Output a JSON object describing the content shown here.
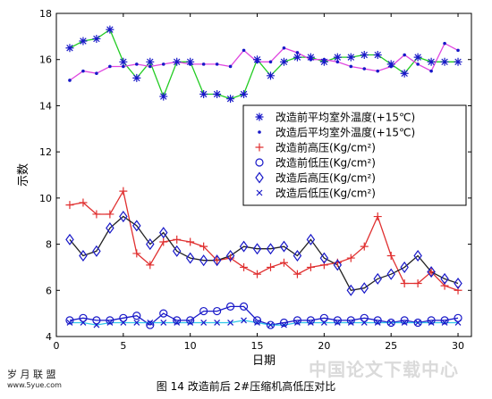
{
  "caption": "图 14  改造前后 2#压缩机高低压对比",
  "watermark": {
    "logo_main": "岁 月 联 盟",
    "logo_sub": "www.5yue.com",
    "right": "中国论文下载中心"
  },
  "chart_data": {
    "type": "line",
    "xlabel": "日期",
    "ylabel": "示数",
    "xlim": [
      0,
      31
    ],
    "ylim": [
      4,
      18
    ],
    "xticks": [
      0,
      5,
      10,
      15,
      20,
      25,
      30
    ],
    "yticks": [
      4,
      6,
      8,
      10,
      12,
      14,
      16,
      18
    ],
    "grid": false,
    "legend_position": "center-right",
    "series": [
      {
        "name": "改造前平均室外温度(+15℃)",
        "color": "#1818c8",
        "line_color": "#22cc22",
        "marker": "star",
        "x": [
          1,
          2,
          3,
          4,
          5,
          6,
          7,
          8,
          9,
          10,
          11,
          12,
          13,
          14,
          15,
          16,
          17,
          18,
          19,
          20,
          21,
          22,
          23,
          24,
          25,
          26,
          27,
          28,
          29,
          30
        ],
        "values": [
          16.5,
          16.8,
          16.9,
          17.3,
          15.9,
          15.2,
          15.9,
          14.4,
          15.9,
          15.9,
          14.5,
          14.5,
          14.3,
          14.5,
          16.0,
          15.3,
          15.9,
          16.1,
          16.1,
          15.9,
          16.1,
          16.1,
          16.2,
          16.2,
          15.8,
          15.4,
          16.1,
          15.9,
          15.9,
          15.9
        ]
      },
      {
        "name": "改造后平均室外温度(+15℃)",
        "color": "#1818c8",
        "line_color": "#e048e0",
        "marker": "dot",
        "x": [
          1,
          2,
          3,
          4,
          5,
          6,
          7,
          8,
          9,
          10,
          11,
          12,
          13,
          14,
          15,
          16,
          17,
          18,
          19,
          20,
          21,
          22,
          23,
          24,
          25,
          26,
          27,
          28,
          29,
          30
        ],
        "values": [
          15.1,
          15.5,
          15.4,
          15.7,
          15.7,
          15.8,
          15.7,
          15.8,
          15.9,
          15.8,
          15.8,
          15.8,
          15.7,
          16.4,
          15.9,
          15.9,
          16.5,
          16.3,
          16.0,
          16.0,
          15.9,
          15.7,
          15.6,
          15.5,
          15.7,
          16.2,
          15.8,
          15.5,
          16.7,
          16.4
        ]
      },
      {
        "name": "改造前高压(Kg/cm²)",
        "color": "#e03030",
        "line_color": "#e03030",
        "marker": "plus",
        "x": [
          1,
          2,
          3,
          4,
          5,
          6,
          7,
          8,
          9,
          10,
          11,
          12,
          13,
          14,
          15,
          16,
          17,
          18,
          19,
          20,
          21,
          22,
          23,
          24,
          25,
          26,
          27,
          28,
          29,
          30
        ],
        "values": [
          9.7,
          9.8,
          9.3,
          9.3,
          10.3,
          7.6,
          7.1,
          8.1,
          8.2,
          8.1,
          7.9,
          7.3,
          7.4,
          7.0,
          6.7,
          7.0,
          7.2,
          6.7,
          7.0,
          7.1,
          7.2,
          7.4,
          7.9,
          9.2,
          7.5,
          6.3,
          6.3,
          6.8,
          6.2,
          6.0
        ]
      },
      {
        "name": "改造前低压(Kg/cm²)",
        "color": "#1818c8",
        "line_color": "#1818c8",
        "marker": "circle",
        "x": [
          1,
          2,
          3,
          4,
          5,
          6,
          7,
          8,
          9,
          10,
          11,
          12,
          13,
          14,
          15,
          16,
          17,
          18,
          19,
          20,
          21,
          22,
          23,
          24,
          25,
          26,
          27,
          28,
          29,
          30
        ],
        "values": [
          4.7,
          4.8,
          4.7,
          4.7,
          4.8,
          4.9,
          4.5,
          5.0,
          4.7,
          4.7,
          5.1,
          5.1,
          5.3,
          5.3,
          4.7,
          4.5,
          4.6,
          4.7,
          4.7,
          4.8,
          4.7,
          4.7,
          4.8,
          4.7,
          4.6,
          4.7,
          4.6,
          4.7,
          4.7,
          4.8
        ]
      },
      {
        "name": "改造后高压(Kg/cm²)",
        "color": "#1818c8",
        "line_color": "#222222",
        "marker": "diamond",
        "x": [
          1,
          2,
          3,
          4,
          5,
          6,
          7,
          8,
          9,
          10,
          11,
          12,
          13,
          14,
          15,
          16,
          17,
          18,
          19,
          20,
          21,
          22,
          23,
          24,
          25,
          26,
          27,
          28,
          29,
          30
        ],
        "values": [
          8.2,
          7.5,
          7.7,
          8.7,
          9.2,
          8.8,
          8.0,
          8.5,
          7.7,
          7.4,
          7.3,
          7.3,
          7.5,
          7.9,
          7.8,
          7.8,
          7.9,
          7.5,
          8.2,
          7.4,
          7.1,
          6.0,
          6.1,
          6.5,
          6.7,
          7.0,
          7.5,
          6.8,
          6.5,
          6.3
        ]
      },
      {
        "name": "改造后低压(Kg/cm²)",
        "color": "#1818c8",
        "line_color": "#30c8e8",
        "marker": "x",
        "x": [
          1,
          2,
          3,
          4,
          5,
          6,
          7,
          8,
          9,
          10,
          11,
          12,
          13,
          14,
          15,
          16,
          17,
          18,
          19,
          20,
          21,
          22,
          23,
          24,
          25,
          26,
          27,
          28,
          29,
          30
        ],
        "values": [
          4.6,
          4.6,
          4.5,
          4.6,
          4.6,
          4.6,
          4.6,
          4.6,
          4.6,
          4.6,
          4.6,
          4.6,
          4.6,
          4.7,
          4.6,
          4.5,
          4.5,
          4.6,
          4.6,
          4.6,
          4.6,
          4.6,
          4.6,
          4.6,
          4.6,
          4.6,
          4.6,
          4.6,
          4.6,
          4.6
        ]
      }
    ]
  }
}
